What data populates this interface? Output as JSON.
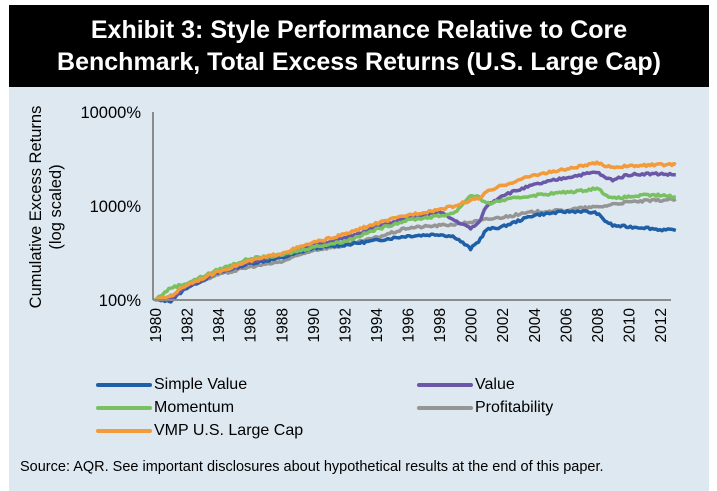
{
  "title": {
    "line1": "Exhibit 3: Style Performance Relative to Core",
    "line2": "Benchmark, Total Excess Returns (U.S. Large Cap)"
  },
  "source_note": "Source: AQR. See important disclosures about hypothetical results at the end of this paper.",
  "colors": {
    "title_background": "#000000",
    "panel_background": "#dde8f0",
    "axis": "#8c8c8c"
  },
  "chart_data": {
    "type": "line",
    "title": "Exhibit 3: Style Performance Relative to Core Benchmark, Total Excess Returns (U.S. Large Cap)",
    "xlabel": "",
    "ylabel": "Cumulative Excess Returns (log scaled)",
    "yscale": "log",
    "ylim": [
      100,
      10000
    ],
    "xlim": [
      1980,
      2013
    ],
    "y_ticks": [
      100,
      1000,
      10000
    ],
    "y_tick_labels": [
      "100%",
      "1000%",
      "10000%"
    ],
    "x_ticks": [
      1980,
      1982,
      1984,
      1986,
      1988,
      1990,
      1992,
      1994,
      1996,
      1998,
      2000,
      2002,
      2004,
      2006,
      2008,
      2010,
      2012
    ],
    "x_tick_labels": [
      "1980",
      "1982",
      "1984",
      "1986",
      "1988",
      "1990",
      "1992",
      "1994",
      "1996",
      "1998",
      "2000",
      "2002",
      "2004",
      "2006",
      "2008",
      "2010",
      "2012"
    ],
    "grid": false,
    "legend_position": "bottom",
    "x": [
      1980,
      1981,
      1982,
      1984,
      1986,
      1988,
      1990,
      1992,
      1994,
      1996,
      1998,
      1999,
      2000,
      2000.5,
      2001,
      2002,
      2004,
      2006,
      2007,
      2008,
      2008.5,
      2009,
      2010,
      2011,
      2012,
      2013
    ],
    "series": [
      {
        "name": "Simple Value",
        "color": "#1f5fa8",
        "values": [
          100,
          98,
          135,
          195,
          245,
          280,
          355,
          385,
          430,
          480,
          500,
          470,
          350,
          420,
          560,
          600,
          800,
          870,
          880,
          840,
          700,
          620,
          600,
          590,
          560,
          550
        ]
      },
      {
        "name": "Value",
        "color": "#6b57a8",
        "values": [
          100,
          102,
          140,
          195,
          255,
          300,
          385,
          450,
          600,
          745,
          870,
          700,
          580,
          650,
          1000,
          1300,
          1675,
          2000,
          2150,
          2300,
          2000,
          1900,
          2150,
          2200,
          2200,
          2140
        ]
      },
      {
        "name": "Momentum",
        "color": "#78c060",
        "values": [
          100,
          135,
          150,
          210,
          275,
          300,
          365,
          420,
          560,
          710,
          780,
          850,
          1300,
          1250,
          1050,
          1150,
          1300,
          1400,
          1450,
          1550,
          1350,
          1200,
          1250,
          1300,
          1300,
          1250
        ]
      },
      {
        "name": "Profitability",
        "color": "#959595",
        "values": [
          100,
          110,
          140,
          185,
          225,
          255,
          340,
          380,
          460,
          585,
          620,
          640,
          675,
          690,
          720,
          760,
          865,
          900,
          950,
          975,
          1000,
          1050,
          1100,
          1130,
          1150,
          1180
        ]
      },
      {
        "name": "VMP U.S. Large Cap",
        "color": "#f39a3a",
        "values": [
          100,
          110,
          145,
          200,
          260,
          315,
          405,
          500,
          650,
          800,
          920,
          1000,
          1155,
          1200,
          1400,
          1650,
          2130,
          2450,
          2650,
          2850,
          2700,
          2600,
          2650,
          2700,
          2750,
          2750
        ]
      }
    ]
  },
  "legend": [
    {
      "label": "Simple Value",
      "color": "#1f5fa8"
    },
    {
      "label": "Value",
      "color": "#6b57a8"
    },
    {
      "label": "Momentum",
      "color": "#78c060"
    },
    {
      "label": "Profitability",
      "color": "#959595"
    },
    {
      "label": "VMP U.S. Large Cap",
      "color": "#f39a3a"
    }
  ]
}
